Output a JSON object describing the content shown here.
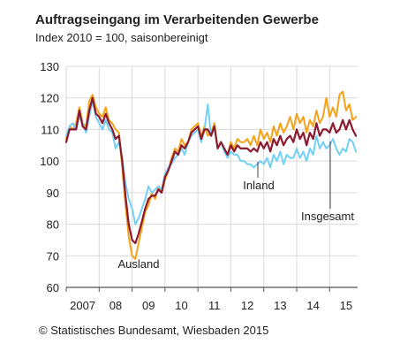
{
  "chart_data": {
    "type": "line",
    "title": "Auftragseingang im Verarbeitenden Gewerbe",
    "subtitle": "Index 2010 = 100, saisonbereinigt",
    "source": "© Statistisches Bundesamt, Wiesbaden 2015",
    "ylim": [
      60,
      130
    ],
    "yticks": [
      "60",
      "70",
      "80",
      "90",
      "100",
      "110",
      "120",
      "130"
    ],
    "xlim": [
      2007.0,
      2015.85
    ],
    "xtick_labels": [
      {
        "label": "2007",
        "x": 2007.5
      },
      {
        "label": "08",
        "x": 2008.5
      },
      {
        "label": "09",
        "x": 2009.5
      },
      {
        "label": "10",
        "x": 2010.5
      },
      {
        "label": "11",
        "x": 2011.5
      },
      {
        "label": "12",
        "x": 2012.5
      },
      {
        "label": "13",
        "x": 2013.5
      },
      {
        "label": "14",
        "x": 2014.5
      },
      {
        "label": "15",
        "x": 2015.5
      }
    ],
    "grid": true,
    "colors": {
      "ausland": "#f5a21a",
      "inland": "#74d0f5",
      "insgesamt": "#8b1a2f",
      "grid": "#d9d9d9",
      "axis": "#555555"
    },
    "annotations": [
      {
        "text": "Ausland",
        "series": "ausland",
        "x": 2008.9,
        "y": 70
      },
      {
        "text": "Inland",
        "series": "inland",
        "x": 2012.4,
        "y": 99
      },
      {
        "text": "Insgesamt",
        "series": "insgesamt",
        "x": 2014.7,
        "y": 102
      }
    ],
    "series": [
      {
        "id": "ausland",
        "x": [
          2007.0,
          2007.1,
          2007.2,
          2007.3,
          2007.4,
          2007.5,
          2007.6,
          2007.7,
          2007.8,
          2007.9,
          2008.0,
          2008.1,
          2008.2,
          2008.3,
          2008.4,
          2008.5,
          2008.6,
          2008.7,
          2008.8,
          2008.9,
          2009.0,
          2009.1,
          2009.2,
          2009.3,
          2009.4,
          2009.5,
          2009.6,
          2009.7,
          2009.8,
          2009.9,
          2010.0,
          2010.1,
          2010.2,
          2010.3,
          2010.4,
          2010.5,
          2010.6,
          2010.7,
          2010.8,
          2010.9,
          2011.0,
          2011.1,
          2011.2,
          2011.3,
          2011.4,
          2011.5,
          2011.6,
          2011.7,
          2011.8,
          2011.9,
          2012.0,
          2012.1,
          2012.2,
          2012.3,
          2012.4,
          2012.5,
          2012.6,
          2012.7,
          2012.8,
          2012.9,
          2013.0,
          2013.1,
          2013.2,
          2013.3,
          2013.4,
          2013.5,
          2013.6,
          2013.7,
          2013.8,
          2013.9,
          2014.0,
          2014.1,
          2014.2,
          2014.3,
          2014.4,
          2014.5,
          2014.6,
          2014.7,
          2014.8,
          2014.9,
          2015.0,
          2015.1,
          2015.2,
          2015.3,
          2015.4,
          2015.5,
          2015.6,
          2015.7,
          2015.8
        ],
        "values": [
          107,
          111,
          110,
          112,
          117,
          112,
          111,
          119,
          121,
          117,
          115,
          114,
          117,
          113,
          112,
          110,
          109,
          98,
          86,
          76,
          70,
          69,
          74,
          79,
          84,
          86,
          90,
          88,
          92,
          90,
          94,
          97,
          101,
          104,
          103,
          107,
          105,
          106,
          110,
          111,
          112,
          108,
          111,
          108,
          109,
          112,
          104,
          106,
          104,
          102,
          106,
          104,
          107,
          106,
          106,
          107,
          105,
          108,
          105,
          110,
          107,
          109,
          106,
          111,
          108,
          112,
          109,
          111,
          114,
          110,
          115,
          112,
          114,
          109,
          113,
          111,
          116,
          112,
          114,
          120,
          114,
          117,
          114,
          121,
          122,
          116,
          118,
          113,
          114
        ]
      },
      {
        "id": "inland",
        "x": [
          2007.0,
          2007.1,
          2007.2,
          2007.3,
          2007.4,
          2007.5,
          2007.6,
          2007.7,
          2007.8,
          2007.9,
          2008.0,
          2008.1,
          2008.2,
          2008.3,
          2008.4,
          2008.5,
          2008.6,
          2008.7,
          2008.8,
          2008.9,
          2009.0,
          2009.1,
          2009.2,
          2009.3,
          2009.4,
          2009.5,
          2009.6,
          2009.7,
          2009.8,
          2009.9,
          2010.0,
          2010.1,
          2010.2,
          2010.3,
          2010.4,
          2010.5,
          2010.6,
          2010.7,
          2010.8,
          2010.9,
          2011.0,
          2011.1,
          2011.2,
          2011.3,
          2011.4,
          2011.5,
          2011.6,
          2011.7,
          2011.8,
          2011.9,
          2012.0,
          2012.1,
          2012.2,
          2012.3,
          2012.4,
          2012.5,
          2012.6,
          2012.7,
          2012.8,
          2012.9,
          2013.0,
          2013.1,
          2013.2,
          2013.3,
          2013.4,
          2013.5,
          2013.6,
          2013.7,
          2013.8,
          2013.9,
          2014.0,
          2014.1,
          2014.2,
          2014.3,
          2014.4,
          2014.5,
          2014.6,
          2014.7,
          2014.8,
          2014.9,
          2015.0,
          2015.1,
          2015.2,
          2015.3,
          2015.4,
          2015.5,
          2015.6,
          2015.7,
          2015.8
        ],
        "values": [
          108,
          111,
          112,
          110,
          114,
          112,
          109,
          114,
          119,
          114,
          112,
          110,
          113,
          110,
          109,
          104,
          106,
          101,
          93,
          88,
          85,
          80,
          82,
          85,
          88,
          92,
          90,
          91,
          92,
          91,
          96,
          98,
          99,
          101,
          102,
          104,
          102,
          106,
          108,
          109,
          110,
          106,
          110,
          118,
          108,
          111,
          104,
          106,
          103,
          101,
          103,
          102,
          102,
          100,
          100,
          99,
          99,
          98,
          99,
          100,
          99,
          101,
          98,
          102,
          100,
          103,
          99,
          102,
          101,
          101,
          104,
          101,
          103,
          100,
          104,
          102,
          108,
          104,
          106,
          104,
          105,
          107,
          104,
          102,
          104,
          103,
          107,
          106,
          103
        ]
      },
      {
        "id": "insgesamt",
        "x": [
          2007.0,
          2007.1,
          2007.2,
          2007.3,
          2007.4,
          2007.5,
          2007.6,
          2007.7,
          2007.8,
          2007.9,
          2008.0,
          2008.1,
          2008.2,
          2008.3,
          2008.4,
          2008.5,
          2008.6,
          2008.7,
          2008.8,
          2008.9,
          2009.0,
          2009.1,
          2009.2,
          2009.3,
          2009.4,
          2009.5,
          2009.6,
          2009.7,
          2009.8,
          2009.9,
          2010.0,
          2010.1,
          2010.2,
          2010.3,
          2010.4,
          2010.5,
          2010.6,
          2010.7,
          2010.8,
          2010.9,
          2011.0,
          2011.1,
          2011.2,
          2011.3,
          2011.4,
          2011.5,
          2011.6,
          2011.7,
          2011.8,
          2011.9,
          2012.0,
          2012.1,
          2012.2,
          2012.3,
          2012.4,
          2012.5,
          2012.6,
          2012.7,
          2012.8,
          2012.9,
          2013.0,
          2013.1,
          2013.2,
          2013.3,
          2013.4,
          2013.5,
          2013.6,
          2013.7,
          2013.8,
          2013.9,
          2014.0,
          2014.1,
          2014.2,
          2014.3,
          2014.4,
          2014.5,
          2014.6,
          2014.7,
          2014.8,
          2014.9,
          2015.0,
          2015.1,
          2015.2,
          2015.3,
          2015.4,
          2015.5,
          2015.6,
          2015.7,
          2015.8
        ],
        "values": [
          106,
          110,
          110,
          110,
          116,
          111,
          110,
          116,
          120,
          115,
          114,
          112,
          115,
          112,
          110,
          107,
          108,
          100,
          89,
          80,
          75,
          74,
          77,
          81,
          85,
          88,
          89,
          89,
          91,
          90,
          95,
          97,
          100,
          103,
          102,
          105,
          104,
          106,
          109,
          110,
          111,
          107,
          110,
          110,
          108,
          111,
          104,
          106,
          104,
          102,
          105,
          103,
          105,
          104,
          104,
          104,
          103,
          104,
          103,
          106,
          104,
          106,
          103,
          107,
          105,
          108,
          105,
          107,
          108,
          106,
          110,
          107,
          109,
          105,
          109,
          107,
          112,
          108,
          110,
          110,
          109,
          112,
          109,
          110,
          113,
          110,
          113,
          110,
          108
        ]
      }
    ]
  }
}
